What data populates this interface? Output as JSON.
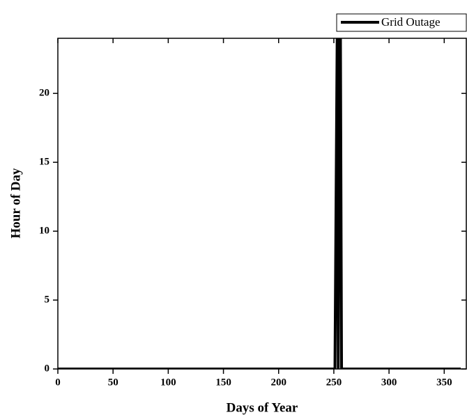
{
  "chart_data": {
    "type": "line",
    "xlabel": "Days of Year",
    "ylabel": "Hour of Day",
    "x": [
      0,
      251,
      253,
      254,
      255,
      256,
      257,
      365
    ],
    "series": [
      {
        "name": "Grid Outage",
        "color": "#000000",
        "values": [
          0,
          0,
          24,
          0,
          24,
          24,
          0,
          0
        ]
      }
    ],
    "xlim": [
      0,
      370
    ],
    "xticks": [
      0,
      50,
      100,
      150,
      200,
      250,
      300,
      350
    ],
    "ylim": [
      0,
      24
    ],
    "yticks": [
      0,
      5,
      10,
      15,
      20
    ],
    "legend": "top-right",
    "grid": false
  }
}
